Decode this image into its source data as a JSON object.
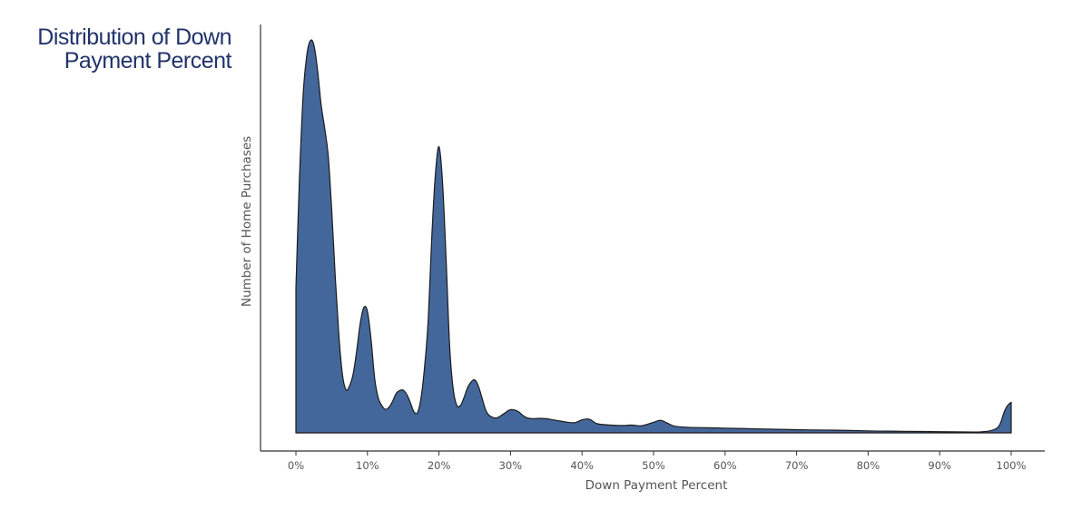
{
  "chart_data": {
    "type": "area",
    "title": [
      "Distribution of Down",
      "Payment Percent"
    ],
    "xlabel": "Down Payment Percent",
    "ylabel": "Number of Home Purchases",
    "xlim": [
      0,
      100
    ],
    "ylim": [
      0,
      1
    ],
    "x_ticks": [
      0,
      10,
      20,
      30,
      40,
      50,
      60,
      70,
      80,
      90,
      100
    ],
    "x_tick_labels": [
      "0%",
      "10%",
      "20%",
      "30%",
      "40%",
      "50%",
      "60%",
      "70%",
      "80%",
      "90%",
      "100%"
    ],
    "y_ticks_shown": false,
    "grid": false,
    "fill_color": "#44679b",
    "line_color": "#1a1a1a",
    "series": [
      {
        "x": [
          0,
          0.5,
          1,
          1.5,
          2,
          2.5,
          3,
          3.5,
          4,
          4.5,
          5,
          5.5,
          6,
          6.5,
          7,
          7.5,
          8,
          8.5,
          9,
          9.5,
          10,
          10.5,
          11,
          11.5,
          12,
          12.5,
          13,
          13.5,
          14,
          14.5,
          15,
          15.5,
          16,
          16.5,
          17,
          17.5,
          18,
          18.5,
          19,
          19.5,
          20,
          20.5,
          21,
          21.5,
          22,
          22.5,
          23,
          23.5,
          24,
          24.5,
          25,
          25.5,
          26,
          26.5,
          27,
          28,
          29,
          30,
          31,
          32,
          33,
          34,
          35,
          36,
          37,
          38,
          39,
          40,
          41,
          42,
          43,
          44,
          45,
          46,
          47,
          48,
          49,
          50,
          51,
          52,
          53,
          55,
          60,
          65,
          70,
          75,
          80,
          85,
          90,
          95,
          96,
          97,
          98,
          98.5,
          99,
          99.5,
          100
        ],
        "y": [
          0.37,
          0.65,
          0.86,
          0.96,
          1.0,
          0.99,
          0.93,
          0.84,
          0.78,
          0.71,
          0.57,
          0.4,
          0.25,
          0.15,
          0.11,
          0.12,
          0.15,
          0.21,
          0.28,
          0.32,
          0.31,
          0.24,
          0.14,
          0.09,
          0.07,
          0.06,
          0.065,
          0.08,
          0.1,
          0.108,
          0.109,
          0.098,
          0.077,
          0.054,
          0.052,
          0.09,
          0.17,
          0.29,
          0.5,
          0.66,
          0.73,
          0.64,
          0.44,
          0.22,
          0.11,
          0.07,
          0.07,
          0.09,
          0.115,
          0.13,
          0.135,
          0.12,
          0.09,
          0.06,
          0.045,
          0.038,
          0.048,
          0.059,
          0.055,
          0.041,
          0.036,
          0.037,
          0.036,
          0.033,
          0.03,
          0.027,
          0.026,
          0.033,
          0.035,
          0.024,
          0.021,
          0.02,
          0.019,
          0.019,
          0.02,
          0.018,
          0.021,
          0.027,
          0.032,
          0.024,
          0.017,
          0.014,
          0.012,
          0.01,
          0.008,
          0.007,
          0.005,
          0.004,
          0.003,
          0.002,
          0.003,
          0.005,
          0.012,
          0.025,
          0.052,
          0.07,
          0.078
        ]
      }
    ]
  }
}
